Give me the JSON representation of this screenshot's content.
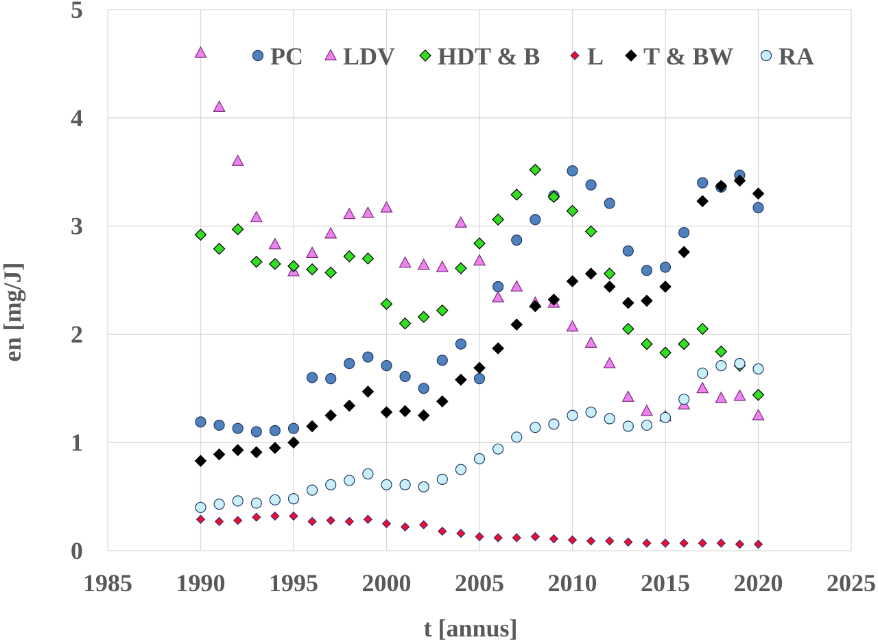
{
  "chart_data": {
    "type": "scatter",
    "title": "",
    "xlabel": "t [annus]",
    "ylabel": "en [mg/J]",
    "xlim": [
      1985,
      2025
    ],
    "ylim": [
      0,
      5
    ],
    "x_ticks": [
      1985,
      1990,
      1995,
      2000,
      2005,
      2010,
      2015,
      2020,
      2025
    ],
    "y_ticks": [
      0,
      1,
      2,
      3,
      4,
      5
    ],
    "grid": true,
    "legend_position": "top",
    "x": [
      1990,
      1991,
      1992,
      1993,
      1994,
      1995,
      1996,
      1997,
      1998,
      1999,
      2000,
      2001,
      2002,
      2003,
      2004,
      2005,
      2006,
      2007,
      2008,
      2009,
      2010,
      2011,
      2012,
      2013,
      2014,
      2015,
      2016,
      2017,
      2018,
      2019,
      2020
    ],
    "series": [
      {
        "name": "PC",
        "marker": "circle",
        "fill": "#4f81bd",
        "values": [
          1.19,
          1.16,
          1.13,
          1.1,
          1.11,
          1.13,
          1.6,
          1.59,
          1.73,
          1.79,
          1.71,
          1.61,
          1.5,
          1.76,
          1.91,
          1.59,
          2.44,
          2.87,
          3.06,
          3.28,
          3.51,
          3.38,
          3.21,
          2.77,
          2.59,
          2.62,
          2.94,
          3.4,
          3.36,
          3.47,
          3.17
        ]
      },
      {
        "name": "LDV",
        "marker": "triangle",
        "fill": "#ee82ee",
        "values": [
          4.6,
          4.1,
          3.6,
          3.08,
          2.83,
          2.58,
          2.75,
          2.93,
          3.11,
          3.12,
          3.17,
          2.66,
          2.64,
          2.62,
          3.03,
          2.68,
          2.34,
          2.44,
          2.29,
          2.29,
          2.07,
          1.92,
          1.73,
          1.42,
          1.29,
          1.24,
          1.35,
          1.5,
          1.41,
          1.43,
          1.25
        ]
      },
      {
        "name": "HDT & B",
        "marker": "diamond",
        "fill": "#33dd22",
        "values": [
          2.92,
          2.79,
          2.97,
          2.67,
          2.65,
          2.63,
          2.6,
          2.57,
          2.72,
          2.7,
          2.28,
          2.1,
          2.16,
          2.22,
          2.61,
          2.84,
          3.06,
          3.29,
          3.52,
          3.27,
          3.14,
          2.95,
          2.56,
          2.05,
          1.91,
          1.83,
          1.91,
          2.05,
          1.84,
          1.71,
          1.44
        ]
      },
      {
        "name": "L",
        "marker": "diamond-small",
        "fill": "#e8102a",
        "values": [
          0.29,
          0.27,
          0.28,
          0.31,
          0.32,
          0.32,
          0.27,
          0.28,
          0.27,
          0.29,
          0.25,
          0.22,
          0.24,
          0.18,
          0.16,
          0.13,
          0.12,
          0.12,
          0.13,
          0.11,
          0.1,
          0.09,
          0.09,
          0.08,
          0.07,
          0.07,
          0.07,
          0.07,
          0.07,
          0.06,
          0.06
        ]
      },
      {
        "name": "T & BW",
        "marker": "diamond",
        "fill": "#000000",
        "values": [
          0.83,
          0.89,
          0.93,
          0.91,
          0.95,
          1.0,
          1.15,
          1.25,
          1.34,
          1.47,
          1.28,
          1.29,
          1.25,
          1.38,
          1.58,
          1.69,
          1.87,
          2.09,
          2.26,
          2.32,
          2.49,
          2.56,
          2.44,
          2.29,
          2.31,
          2.44,
          2.76,
          3.23,
          3.37,
          3.42,
          3.3
        ]
      },
      {
        "name": "RA",
        "marker": "circle",
        "fill": "#c9f0f8",
        "values": [
          0.4,
          0.43,
          0.46,
          0.44,
          0.47,
          0.48,
          0.56,
          0.61,
          0.65,
          0.71,
          0.61,
          0.61,
          0.59,
          0.66,
          0.75,
          0.85,
          0.94,
          1.05,
          1.14,
          1.17,
          1.25,
          1.28,
          1.22,
          1.15,
          1.16,
          1.23,
          1.4,
          1.64,
          1.71,
          1.73,
          1.68
        ]
      }
    ]
  }
}
